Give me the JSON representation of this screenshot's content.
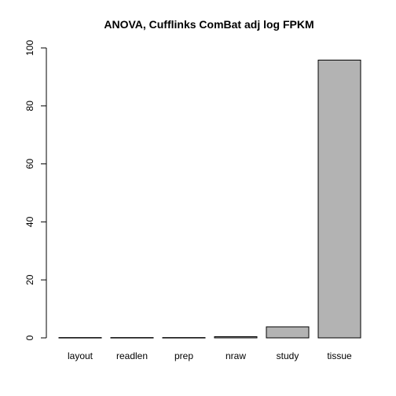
{
  "chart_data": {
    "type": "bar",
    "title": "ANOVA, Cufflinks ComBat adj log FPKM",
    "xlabel": "",
    "ylabel": "",
    "categories": [
      "layout",
      "readlen",
      "prep",
      "nraw",
      "study",
      "tissue"
    ],
    "values": [
      0.1,
      0.1,
      0.1,
      0.4,
      3.8,
      95.8
    ],
    "ylim": [
      0,
      100
    ],
    "yticks": [
      0,
      20,
      40,
      60,
      80,
      100
    ],
    "grid": false,
    "legend": "none",
    "colors": {
      "bar_fill": "#b3b3b3",
      "bar_stroke": "#000000"
    }
  }
}
